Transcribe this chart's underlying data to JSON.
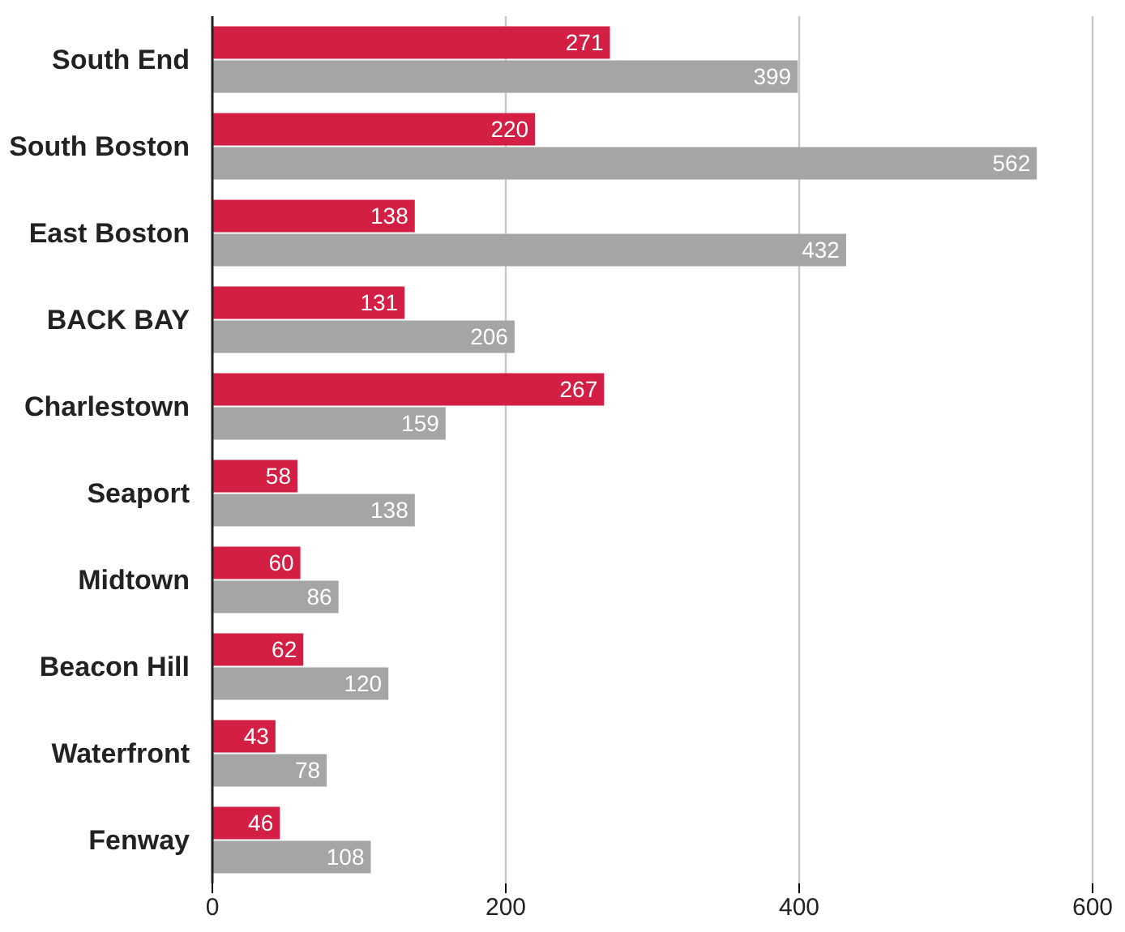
{
  "chart_data": {
    "type": "bar",
    "orientation": "horizontal",
    "categories": [
      "South End",
      "South Boston",
      "East Boston",
      "BACK BAY",
      "Charlestown",
      "Seaport",
      "Midtown",
      "Beacon Hill",
      "Waterfront",
      "Fenway"
    ],
    "series": [
      {
        "color": "#d41f45",
        "values": [
          271,
          220,
          138,
          131,
          267,
          58,
          60,
          62,
          43,
          46
        ]
      },
      {
        "color": "#a5a5a5",
        "values": [
          399,
          562,
          432,
          206,
          159,
          138,
          86,
          120,
          78,
          108
        ]
      }
    ],
    "xlim": [
      0,
      600
    ],
    "xticks": [
      0,
      200,
      400,
      600
    ],
    "grid": "x",
    "data_labels": true
  }
}
